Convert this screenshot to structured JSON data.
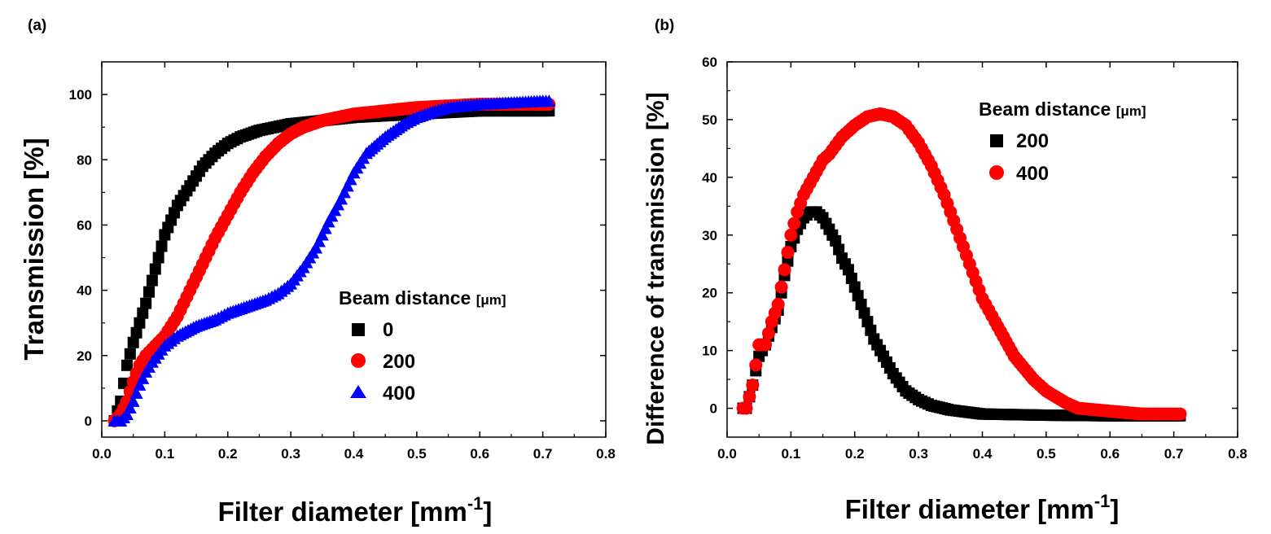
{
  "colors": {
    "black": "#000000",
    "red": "#ff0000",
    "blue": "#0000ff"
  },
  "chart_data": [
    {
      "panel_label": "(a)",
      "type": "scatter",
      "xlabel": "Filter diameter [mm",
      "xlabel_sup": "-1",
      "xlabel_end": "]",
      "ylabel": "Transmission [%]",
      "xlim": [
        0.0,
        0.8
      ],
      "ylim": [
        -5,
        110
      ],
      "xticks": [
        "0.0",
        "0.1",
        "0.2",
        "0.3",
        "0.4",
        "0.5",
        "0.6",
        "0.7",
        "0.8"
      ],
      "xtick_values": [
        0.0,
        0.1,
        0.2,
        0.3,
        0.4,
        0.5,
        0.6,
        0.7,
        0.8
      ],
      "yticks": [
        "0",
        "20",
        "40",
        "60",
        "80",
        "100"
      ],
      "ytick_values": [
        0,
        20,
        40,
        60,
        80,
        100
      ],
      "legend": {
        "title": "Beam distance",
        "unit": "[μm]",
        "placement": "center-right"
      },
      "series": [
        {
          "name": "0",
          "marker": "square",
          "color": "#000000",
          "x": [
            0.02,
            0.03,
            0.04,
            0.05,
            0.06,
            0.07,
            0.08,
            0.09,
            0.1,
            0.12,
            0.14,
            0.16,
            0.18,
            0.2,
            0.22,
            0.25,
            0.3,
            0.35,
            0.4,
            0.5,
            0.6,
            0.7,
            0.71
          ],
          "y": [
            0,
            6,
            17,
            24,
            30,
            36,
            43,
            50,
            57,
            66,
            72,
            78,
            82,
            85,
            87,
            89,
            91,
            92,
            93,
            94,
            95,
            95,
            95
          ]
        },
        {
          "name": "200",
          "marker": "circle",
          "color": "#ff0000",
          "x": [
            0.02,
            0.03,
            0.04,
            0.05,
            0.06,
            0.07,
            0.08,
            0.1,
            0.12,
            0.14,
            0.16,
            0.18,
            0.2,
            0.22,
            0.24,
            0.26,
            0.28,
            0.3,
            0.32,
            0.35,
            0.4,
            0.45,
            0.5,
            0.55,
            0.6,
            0.65,
            0.7,
            0.71
          ],
          "y": [
            0,
            2,
            6,
            12,
            17,
            20,
            22,
            26,
            32,
            40,
            48,
            56,
            63,
            70,
            76,
            81,
            85,
            88,
            90,
            92,
            94,
            95,
            96,
            96.5,
            97,
            97,
            97,
            97
          ]
        },
        {
          "name": "400",
          "marker": "triangle",
          "color": "#0000ff",
          "x": [
            0.02,
            0.03,
            0.04,
            0.05,
            0.06,
            0.07,
            0.08,
            0.1,
            0.12,
            0.15,
            0.18,
            0.2,
            0.23,
            0.26,
            0.28,
            0.3,
            0.32,
            0.34,
            0.35,
            0.36,
            0.38,
            0.4,
            0.42,
            0.45,
            0.48,
            0.5,
            0.53,
            0.55,
            0.6,
            0.65,
            0.7,
            0.71
          ],
          "y": [
            0,
            0,
            2,
            6,
            11,
            15,
            18,
            23,
            26,
            29,
            31,
            33,
            35,
            37,
            39,
            42,
            47,
            53,
            57,
            61,
            68,
            76,
            82,
            87,
            91,
            93,
            95,
            96,
            97,
            97.5,
            98,
            98
          ]
        }
      ]
    },
    {
      "panel_label": "(b)",
      "type": "scatter",
      "xlabel": "Filter diameter [mm",
      "xlabel_sup": "-1",
      "xlabel_end": "]",
      "ylabel": "Difference of transmission [%]",
      "xlim": [
        0.0,
        0.8
      ],
      "ylim": [
        -5,
        60
      ],
      "xticks": [
        "0.0",
        "0.1",
        "0.2",
        "0.3",
        "0.4",
        "0.5",
        "0.6",
        "0.7",
        "0.8"
      ],
      "xtick_values": [
        0.0,
        0.1,
        0.2,
        0.3,
        0.4,
        0.5,
        0.6,
        0.7,
        0.8
      ],
      "yticks": [
        "0",
        "10",
        "20",
        "30",
        "40",
        "50",
        "60"
      ],
      "ytick_values": [
        0,
        10,
        20,
        30,
        40,
        50,
        60
      ],
      "legend": {
        "title": "Beam distance",
        "unit": "[μm]",
        "placement": "top-right"
      },
      "series": [
        {
          "name": "200",
          "marker": "square",
          "color": "#000000",
          "x": [
            0.025,
            0.03,
            0.04,
            0.05,
            0.06,
            0.07,
            0.08,
            0.09,
            0.1,
            0.11,
            0.12,
            0.13,
            0.14,
            0.15,
            0.16,
            0.17,
            0.18,
            0.19,
            0.2,
            0.21,
            0.22,
            0.23,
            0.24,
            0.25,
            0.26,
            0.27,
            0.28,
            0.3,
            0.32,
            0.35,
            0.4,
            0.5,
            0.6,
            0.7,
            0.71
          ],
          "y": [
            0,
            0,
            4,
            9,
            11,
            14,
            17,
            23,
            28,
            31,
            33,
            34,
            34,
            33,
            31,
            29,
            26,
            24,
            21,
            18,
            15,
            12,
            10,
            8,
            6,
            4.5,
            3,
            1.5,
            0.5,
            -0.3,
            -1,
            -1.2,
            -1.3,
            -1.3,
            -1.3
          ]
        },
        {
          "name": "400",
          "marker": "circle",
          "color": "#ff0000",
          "x": [
            0.025,
            0.03,
            0.04,
            0.05,
            0.06,
            0.07,
            0.08,
            0.09,
            0.1,
            0.11,
            0.12,
            0.13,
            0.14,
            0.15,
            0.16,
            0.18,
            0.2,
            0.22,
            0.24,
            0.26,
            0.28,
            0.3,
            0.32,
            0.34,
            0.36,
            0.38,
            0.4,
            0.42,
            0.45,
            0.48,
            0.5,
            0.53,
            0.55,
            0.6,
            0.65,
            0.7,
            0.71
          ],
          "y": [
            0,
            0,
            4,
            11,
            11,
            15,
            18,
            24,
            30,
            34,
            37,
            39,
            41,
            43,
            44,
            47,
            49,
            50.5,
            51,
            50.5,
            49,
            46,
            42,
            37,
            31,
            25,
            19,
            15,
            9,
            5,
            3,
            1,
            0,
            -0.5,
            -1,
            -1,
            -1
          ]
        }
      ]
    }
  ]
}
